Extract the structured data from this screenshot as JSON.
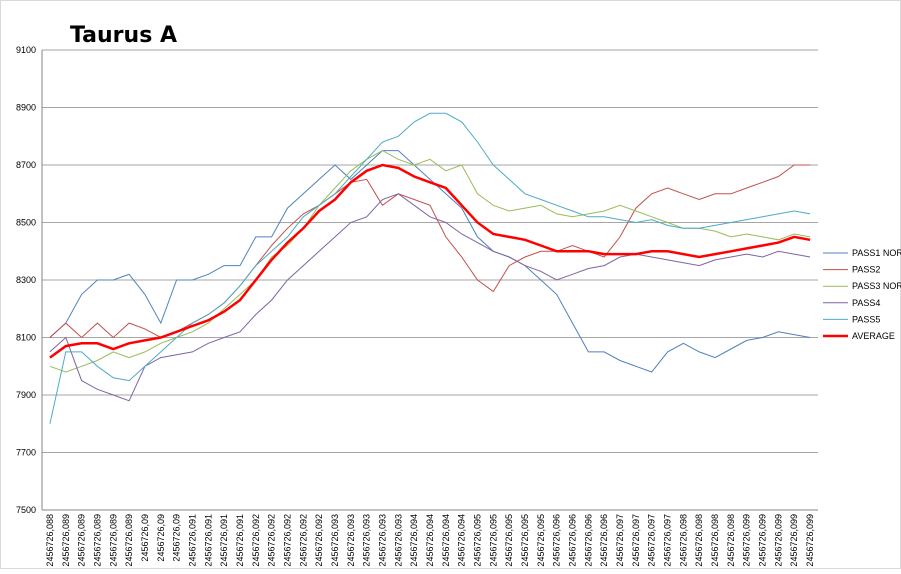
{
  "chart_data": {
    "type": "line",
    "title": "Taurus A",
    "categories": [
      "2456726,088",
      "2456726,089",
      "2456726,089",
      "2456726,089",
      "2456726,089",
      "2456726,089",
      "2456726,09",
      "2456726,09",
      "2456726,09",
      "2456726,091",
      "2456726,091",
      "2456726,091",
      "2456726,091",
      "2456726,092",
      "2456726,092",
      "2456726,092",
      "2456726,092",
      "2456726,092",
      "2456726,093",
      "2456726,093",
      "2456726,093",
      "2456726,093",
      "2456726,093",
      "2456726,094",
      "2456726,094",
      "2456726,094",
      "2456726,094",
      "2456726,095",
      "2456726,095",
      "2456726,095",
      "2456726,095",
      "2456726,095",
      "2456726,096",
      "2456726,096",
      "2456726,096",
      "2456726,096",
      "2456726,097",
      "2456726,097",
      "2456726,097",
      "2456726,097",
      "2456726,098",
      "2456726,098",
      "2456726,098",
      "2456726,098",
      "2456726,099",
      "2456726,099",
      "2456726,099",
      "2456726,099",
      "2456726,099"
    ],
    "series": [
      {
        "name": "PASS1 NORM",
        "color": "#4f81bd",
        "width": 1,
        "values": [
          8100,
          8150,
          8250,
          8300,
          8300,
          8320,
          8250,
          8150,
          8300,
          8300,
          8320,
          8350,
          8350,
          8450,
          8450,
          8550,
          8600,
          8650,
          8700,
          8650,
          8700,
          8750,
          8750,
          8700,
          8650,
          8600,
          8550,
          8450,
          8400,
          8380,
          8350,
          8300,
          8250,
          8150,
          8050,
          8050,
          8020,
          8000,
          7980,
          8050,
          8080,
          8050,
          8030,
          8060,
          8090,
          8100,
          8120,
          8110,
          8100
        ]
      },
      {
        "name": "PASS2",
        "color": "#c0504d",
        "width": 1,
        "values": [
          8100,
          8150,
          8100,
          8150,
          8100,
          8150,
          8130,
          8100,
          8120,
          8150,
          8180,
          8220,
          8280,
          8350,
          8420,
          8480,
          8530,
          8560,
          8600,
          8640,
          8650,
          8560,
          8600,
          8580,
          8560,
          8450,
          8380,
          8300,
          8260,
          8350,
          8380,
          8400,
          8400,
          8420,
          8400,
          8380,
          8450,
          8550,
          8600,
          8620,
          8600,
          8580,
          8600,
          8600,
          8620,
          8640,
          8660,
          8700,
          8700
        ]
      },
      {
        "name": "PASS3 NORM",
        "color": "#9bbb59",
        "width": 1,
        "values": [
          8000,
          7980,
          8000,
          8020,
          8050,
          8030,
          8050,
          8080,
          8100,
          8120,
          8150,
          8200,
          8250,
          8300,
          8380,
          8420,
          8480,
          8560,
          8620,
          8680,
          8720,
          8750,
          8720,
          8700,
          8720,
          8680,
          8700,
          8600,
          8560,
          8540,
          8550,
          8560,
          8530,
          8520,
          8530,
          8540,
          8560,
          8540,
          8520,
          8500,
          8480,
          8480,
          8470,
          8450,
          8460,
          8450,
          8440,
          8460,
          8450
        ]
      },
      {
        "name": "PASS4",
        "color": "#8064a2",
        "width": 1,
        "values": [
          8050,
          8100,
          7950,
          7920,
          7900,
          7880,
          8000,
          8030,
          8040,
          8050,
          8080,
          8100,
          8120,
          8180,
          8230,
          8300,
          8350,
          8400,
          8450,
          8500,
          8520,
          8580,
          8600,
          8560,
          8520,
          8500,
          8460,
          8430,
          8400,
          8380,
          8350,
          8330,
          8300,
          8320,
          8340,
          8350,
          8380,
          8390,
          8380,
          8370,
          8360,
          8350,
          8370,
          8380,
          8390,
          8380,
          8400,
          8390,
          8380
        ]
      },
      {
        "name": "PASS5",
        "color": "#4bacc6",
        "width": 1,
        "values": [
          7800,
          8050,
          8050,
          8000,
          7960,
          7950,
          8000,
          8050,
          8100,
          8150,
          8180,
          8220,
          8280,
          8350,
          8400,
          8450,
          8520,
          8560,
          8600,
          8660,
          8720,
          8780,
          8800,
          8850,
          8880,
          8880,
          8850,
          8780,
          8700,
          8650,
          8600,
          8580,
          8560,
          8540,
          8520,
          8520,
          8510,
          8500,
          8510,
          8490,
          8480,
          8480,
          8490,
          8500,
          8510,
          8520,
          8530,
          8540,
          8530
        ]
      },
      {
        "name": "AVERAGE",
        "color": "#ff0000",
        "width": 2.5,
        "values": [
          8030,
          8070,
          8080,
          8080,
          8060,
          8080,
          8090,
          8100,
          8120,
          8140,
          8160,
          8190,
          8230,
          8300,
          8370,
          8430,
          8480,
          8540,
          8580,
          8640,
          8680,
          8700,
          8690,
          8660,
          8640,
          8620,
          8560,
          8500,
          8460,
          8450,
          8440,
          8420,
          8400,
          8400,
          8400,
          8390,
          8390,
          8390,
          8400,
          8400,
          8390,
          8380,
          8390,
          8400,
          8410,
          8420,
          8430,
          8450,
          8440
        ]
      }
    ],
    "ylim": [
      7500,
      9100
    ],
    "yticks": [
      7500,
      7700,
      7900,
      8100,
      8300,
      8500,
      8700,
      8900,
      9100
    ],
    "grid": true,
    "legend": "right"
  }
}
